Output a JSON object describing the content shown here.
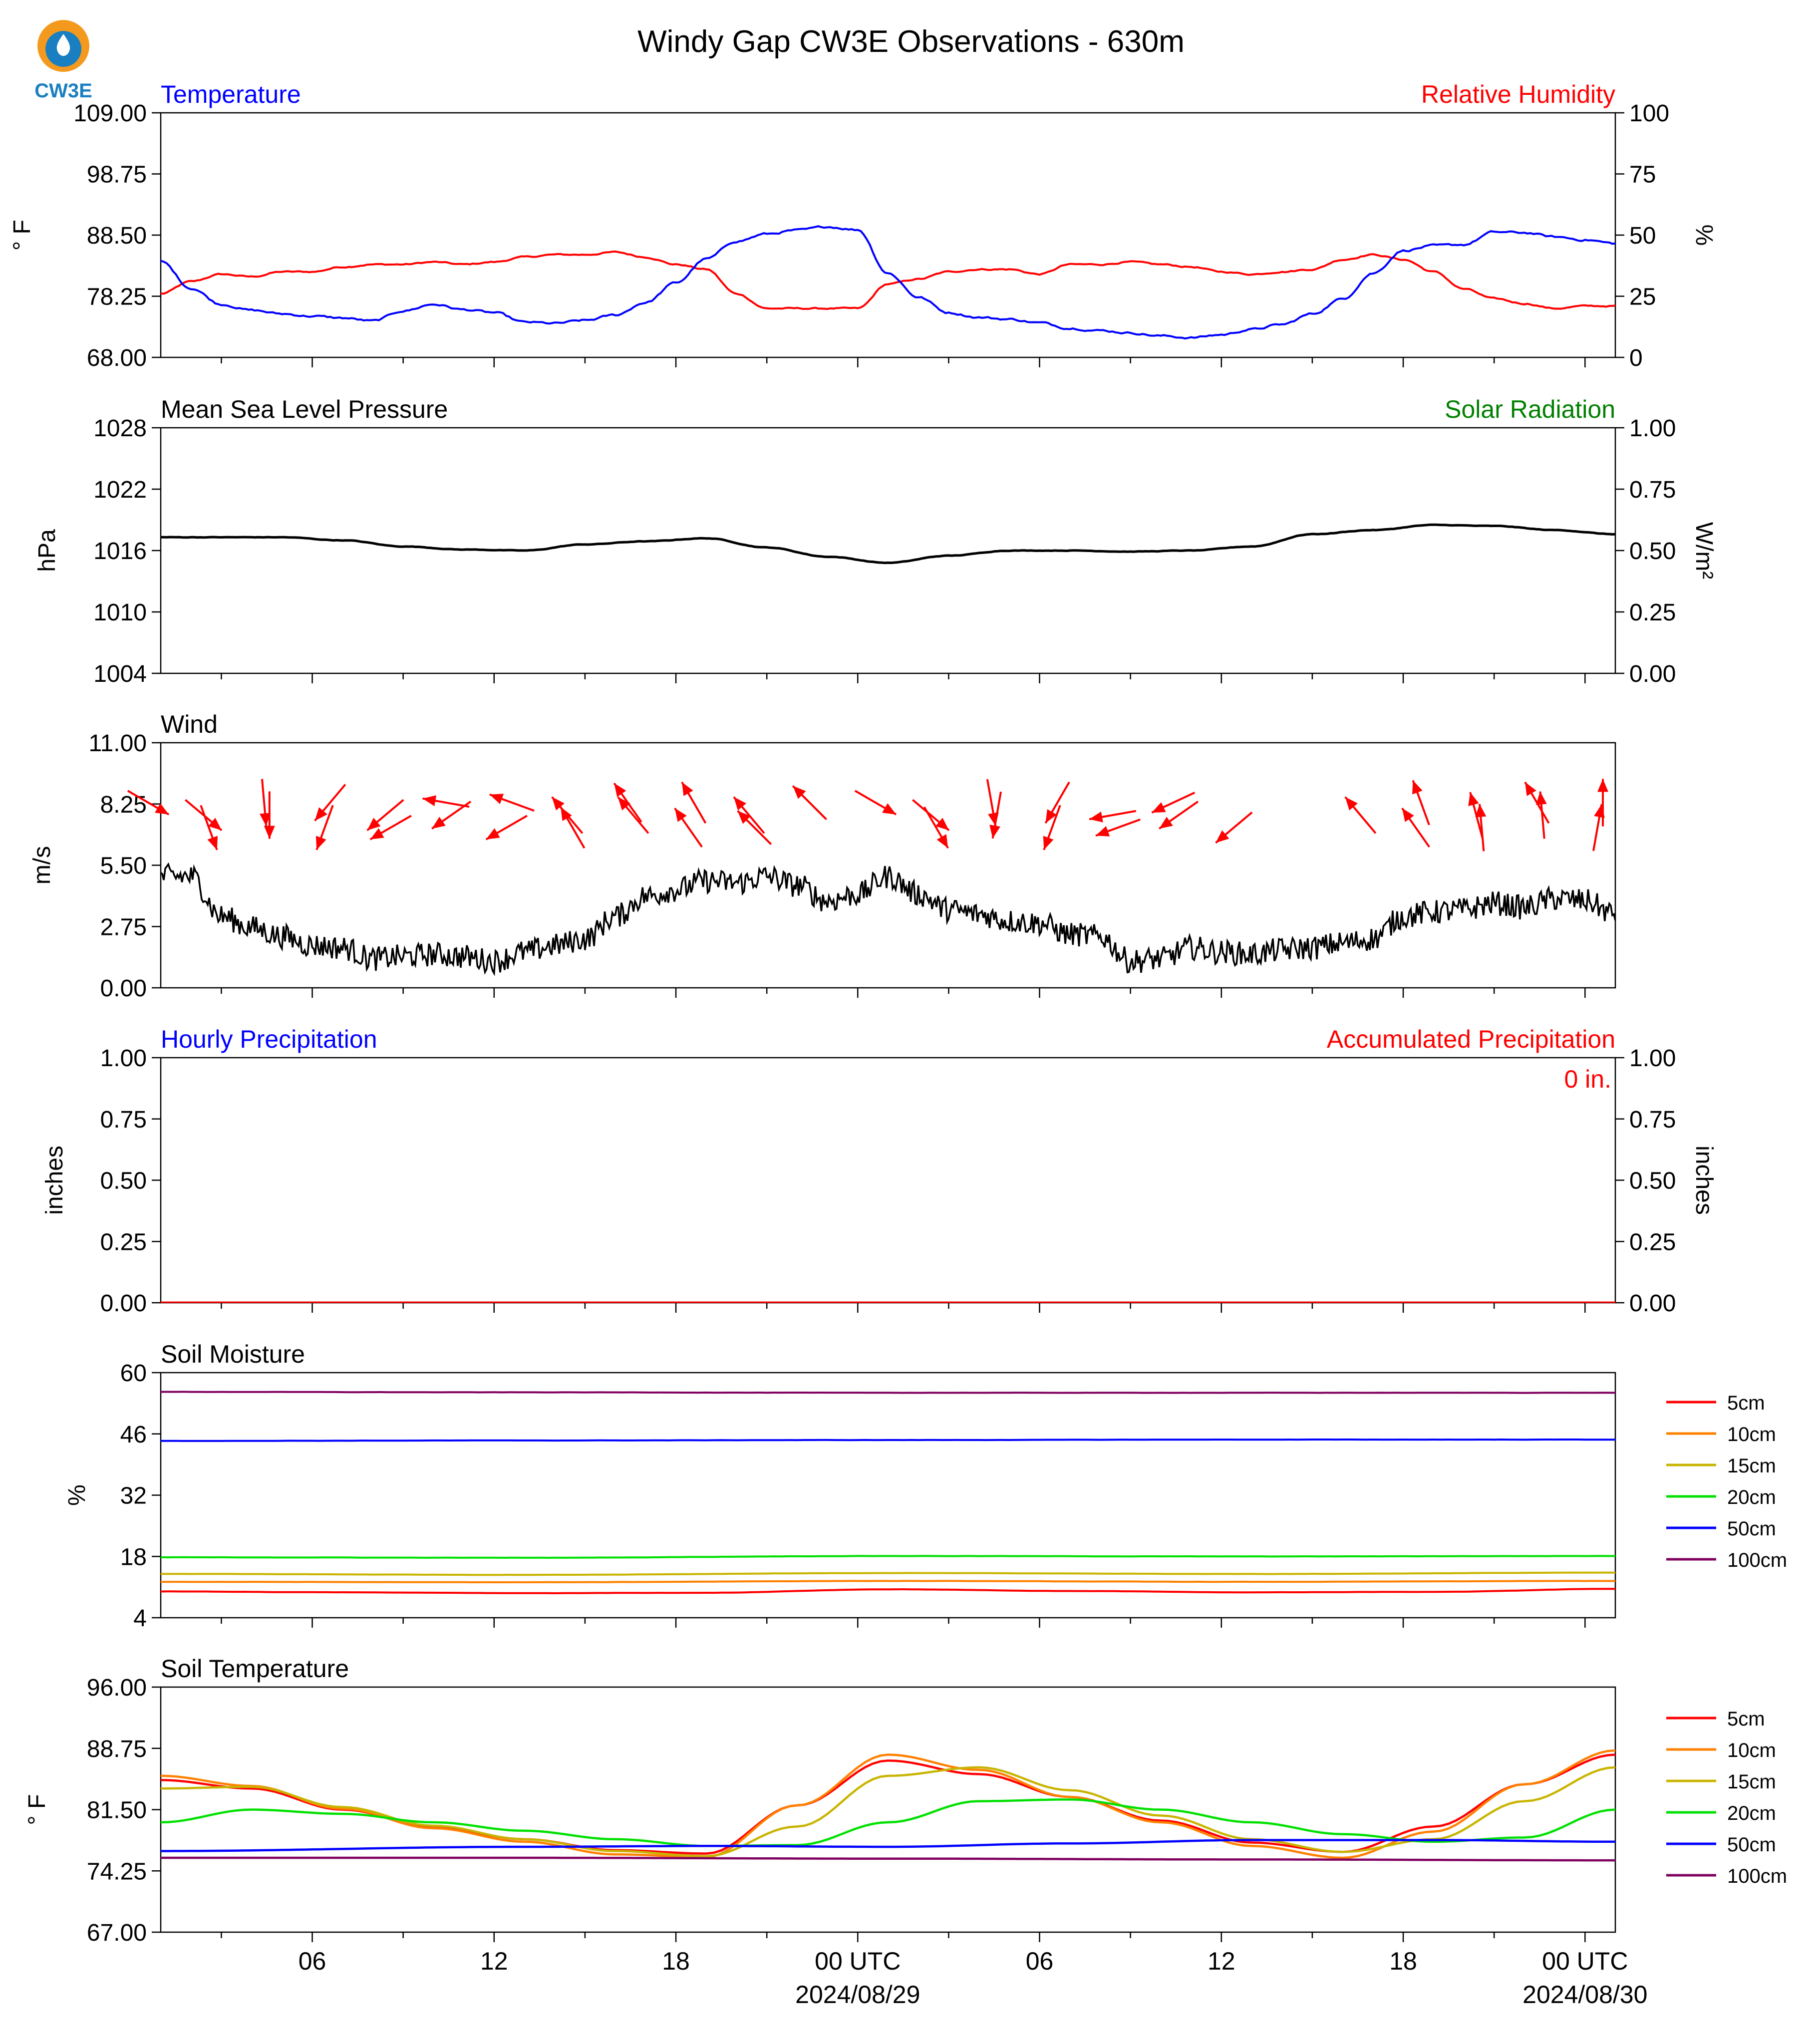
{
  "title": "Windy Gap CW3E Observations - 630m",
  "logo_text": "CW3E",
  "x_axis": {
    "tick_labels": [
      "06",
      "12",
      "18",
      "00 UTC",
      "06",
      "12",
      "18",
      "00 UTC"
    ],
    "date_labels": [
      "2024/08/29",
      "2024/08/30"
    ],
    "range_hours_from_0000Z_0828": [
      1,
      49
    ]
  },
  "legend_soil": {
    "entries": [
      "5cm",
      "10cm",
      "15cm",
      "20cm",
      "50cm",
      "100cm"
    ],
    "colors": [
      "#ff0000",
      "#ff8000",
      "#c8b400",
      "#00e000",
      "#0000ff",
      "#800060"
    ]
  },
  "colors": {
    "temp": "#0000ff",
    "rh": "#ff0000",
    "pressure": "#000000",
    "solar": "#008000",
    "wind": "#000000",
    "arrows": "#ff0000",
    "hourly": "#0000ff",
    "accum": "#ff0000"
  },
  "panels": {
    "temp": {
      "left_title": "Temperature",
      "right_title": "Relative Humidity",
      "left_ylabel": "° F",
      "right_ylabel": "%",
      "left_ticks": [
        "109.00",
        "98.75",
        "88.50",
        "78.25",
        "68.00"
      ],
      "right_ticks": [
        "100",
        "75",
        "50",
        "25",
        "0"
      ]
    },
    "pressure": {
      "left_title": "Mean Sea Level Pressure",
      "right_title": "Solar Radiation",
      "left_ylabel": "hPa",
      "right_ylabel": "W/m²",
      "left_ticks": [
        "1028",
        "1022",
        "1016",
        "1010",
        "1004"
      ],
      "right_ticks": [
        "1.00",
        "0.75",
        "0.50",
        "0.25",
        "0.00"
      ]
    },
    "wind": {
      "left_title": "Wind",
      "left_ylabel": "m/s",
      "left_ticks": [
        "11.00",
        "8.25",
        "5.50",
        "2.75",
        "0.00"
      ]
    },
    "precip": {
      "left_title": "Hourly Precipitation",
      "right_title": "Accumulated Precipitation",
      "left_ylabel": "inches",
      "right_ylabel": "inches",
      "left_ticks": [
        "1.00",
        "0.75",
        "0.50",
        "0.25",
        "0.00"
      ],
      "right_ticks": [
        "1.00",
        "0.75",
        "0.50",
        "0.25",
        "0.00"
      ],
      "accum_label": "0 in."
    },
    "soilm": {
      "left_title": "Soil Moisture",
      "left_ylabel": "%",
      "left_ticks": [
        "60",
        "46",
        "32",
        "18",
        "4"
      ]
    },
    "soilt": {
      "left_title": "Soil Temperature",
      "left_ylabel": "° F",
      "left_ticks": [
        "96.00",
        "88.75",
        "81.50",
        "74.25",
        "67.00"
      ]
    }
  },
  "chart_data": [
    {
      "type": "line",
      "title": "Temperature / Relative Humidity",
      "x_units": "hours since 2024-08-28 00 UTC",
      "y_left": {
        "label": "° F",
        "range": [
          68,
          109
        ]
      },
      "y_right": {
        "label": "%",
        "range": [
          0,
          100
        ]
      },
      "series": [
        {
          "name": "Temperature",
          "axis": "left",
          "x": [
            1,
            2,
            3,
            4,
            5,
            6,
            7,
            8,
            9,
            10,
            11,
            12,
            13,
            14,
            15,
            16,
            17,
            18,
            19,
            20,
            21,
            22,
            23,
            24,
            25,
            26,
            27,
            28,
            29,
            30,
            31,
            32,
            33,
            34,
            35,
            36,
            37,
            38,
            39,
            40,
            41,
            42,
            43,
            44,
            45,
            46,
            47,
            48,
            49
          ],
          "y": [
            84.1,
            79.6,
            76.9,
            75.9,
            75.3,
            74.9,
            74.6,
            74.1,
            75.8,
            76.9,
            76.0,
            75.5,
            73.9,
            73.7,
            74.2,
            75.1,
            77.2,
            80.5,
            84.5,
            87.5,
            88.7,
            89.3,
            89.9,
            89.4,
            82.1,
            78.1,
            75.5,
            74.7,
            74.4,
            73.8,
            72.9,
            72.5,
            72.1,
            71.6,
            71.3,
            71.8,
            72.7,
            73.5,
            75.3,
            77.8,
            82.1,
            85.9,
            86.7,
            86.9,
            89.0,
            88.9,
            88.2,
            87.7,
            87.1
          ]
        },
        {
          "name": "Relative Humidity",
          "axis": "right",
          "x": [
            1,
            2,
            3,
            4,
            5,
            6,
            7,
            8,
            9,
            10,
            11,
            12,
            13,
            14,
            15,
            16,
            17,
            18,
            19,
            20,
            21,
            22,
            23,
            24,
            25,
            26,
            27,
            28,
            29,
            30,
            31,
            32,
            33,
            34,
            35,
            36,
            37,
            38,
            39,
            40,
            41,
            42,
            43,
            44,
            45,
            46,
            47,
            48,
            49
          ],
          "y": [
            26,
            31,
            34,
            33,
            35,
            35,
            37,
            38,
            38,
            39,
            38,
            39,
            41,
            42,
            42,
            43,
            41,
            38,
            36,
            26,
            20,
            20,
            20,
            20,
            30,
            32,
            35,
            36,
            36,
            34,
            38,
            38,
            39,
            38,
            37,
            35,
            34,
            35,
            36,
            40,
            42,
            40,
            35,
            28,
            24,
            22,
            20,
            21,
            21
          ]
        }
      ]
    },
    {
      "type": "line",
      "title": "Mean Sea Level Pressure / Solar Radiation",
      "x_units": "hours since 2024-08-28 00 UTC",
      "y_left": {
        "label": "hPa",
        "range": [
          1004,
          1028
        ]
      },
      "y_right": {
        "label": "W/m²",
        "range": [
          0,
          1
        ]
      },
      "series": [
        {
          "name": "Mean Sea Level Pressure",
          "axis": "left",
          "x": [
            1,
            3,
            5,
            7,
            9,
            11,
            13,
            15,
            17,
            19,
            21,
            23,
            25,
            27,
            29,
            31,
            33,
            35,
            37,
            39,
            41,
            43,
            45,
            47,
            49
          ],
          "y": [
            1017.3,
            1017.3,
            1017.3,
            1017.0,
            1016.4,
            1016.1,
            1016.0,
            1016.6,
            1016.9,
            1017.2,
            1016.3,
            1015.4,
            1014.8,
            1015.5,
            1016.0,
            1016.0,
            1015.9,
            1016.0,
            1016.4,
            1017.6,
            1018.0,
            1018.5,
            1018.4,
            1018.0,
            1017.6
          ]
        }
      ]
    },
    {
      "type": "line",
      "title": "Wind",
      "x_units": "hours since 2024-08-28 00 UTC",
      "y": {
        "label": "m/s",
        "range": [
          0,
          11
        ]
      },
      "series": [
        {
          "name": "Wind speed",
          "x": [
            1,
            2,
            3,
            4,
            5,
            6,
            7,
            8,
            9,
            10,
            11,
            12,
            13,
            14,
            15,
            16,
            17,
            18,
            19,
            20,
            21,
            22,
            23,
            24,
            25,
            26,
            27,
            28,
            29,
            30,
            31,
            32,
            33,
            34,
            35,
            36,
            37,
            38,
            39,
            40,
            41,
            42,
            43,
            44,
            45,
            46,
            47,
            48,
            49
          ],
          "y": [
            5.0,
            5.0,
            3.2,
            2.7,
            2.3,
            1.9,
            1.8,
            1.3,
            1.4,
            1.5,
            1.4,
            1.2,
            1.6,
            1.9,
            2.2,
            3.2,
            4.1,
            4.4,
            4.8,
            4.7,
            5.0,
            4.6,
            3.9,
            4.2,
            5.0,
            4.2,
            3.5,
            3.3,
            3.0,
            2.9,
            2.4,
            2.3,
            1.2,
            1.3,
            1.8,
            1.6,
            1.5,
            1.7,
            1.8,
            2.0,
            2.2,
            3.2,
            3.4,
            3.5,
            3.8,
            3.6,
            4.0,
            3.9,
            3.3
          ]
        }
      ],
      "direction_arrows": {
        "hours": [
          1,
          2,
          3,
          4,
          5,
          6,
          7,
          8,
          9,
          10,
          11,
          12,
          13,
          14,
          15,
          16,
          17,
          18,
          19,
          20,
          21,
          22,
          23,
          24,
          25,
          26,
          27,
          28,
          29,
          30,
          31,
          32,
          33,
          34,
          35,
          36,
          37,
          38,
          39,
          40,
          41,
          42,
          43,
          44,
          45,
          46,
          47,
          48,
          49
        ],
        "toward_deg": [
          120,
          130,
          160,
          175,
          180,
          200,
          220,
          230,
          240,
          280,
          235,
          240,
          290,
          320,
          330,
          325,
          320,
          325,
          330,
          320,
          315,
          315,
          null,
          null,
          120,
          130,
          150,
          170,
          190,
          200,
          210,
          260,
          250,
          245,
          235,
          230,
          null,
          null,
          null,
          null,
          320,
          325,
          340,
          345,
          355,
          330,
          355,
          10,
          0
        ]
      }
    },
    {
      "type": "line",
      "title": "Hourly Precipitation / Accumulated Precipitation",
      "x_units": "hours since 2024-08-28 00 UTC",
      "y_left": {
        "label": "inches",
        "range": [
          0,
          1
        ]
      },
      "y_right": {
        "label": "inches",
        "range": [
          0,
          1
        ]
      },
      "series": [
        {
          "name": "Hourly Precipitation",
          "axis": "left",
          "x": [
            1,
            49
          ],
          "y": [
            0,
            0
          ]
        },
        {
          "name": "Accumulated Precipitation",
          "axis": "right",
          "x": [
            1,
            49
          ],
          "y": [
            0,
            0
          ]
        }
      ]
    },
    {
      "type": "line",
      "title": "Soil Moisture",
      "x_units": "hours since 2024-08-28 00 UTC",
      "y": {
        "label": "%",
        "range": [
          4,
          60
        ]
      },
      "series": [
        {
          "name": "5cm",
          "x": [
            1,
            7,
            13,
            19,
            25,
            31,
            37,
            43,
            49
          ],
          "y": [
            10.0,
            9.8,
            9.6,
            9.7,
            10.5,
            10.1,
            9.8,
            9.9,
            10.6
          ]
        },
        {
          "name": "10cm",
          "x": [
            1,
            13,
            25,
            37,
            49
          ],
          "y": [
            12.2,
            12.1,
            12.4,
            12.2,
            12.4
          ]
        },
        {
          "name": "15cm",
          "x": [
            1,
            13,
            25,
            37,
            49
          ],
          "y": [
            14.0,
            13.8,
            14.2,
            14.0,
            14.3
          ]
        },
        {
          "name": "20cm",
          "x": [
            1,
            13,
            25,
            37,
            49
          ],
          "y": [
            17.8,
            17.7,
            18.1,
            18.0,
            18.1
          ]
        },
        {
          "name": "50cm",
          "x": [
            1,
            13,
            25,
            37,
            49
          ],
          "y": [
            44.4,
            44.5,
            44.6,
            44.7,
            44.7
          ]
        },
        {
          "name": "100cm",
          "x": [
            1,
            13,
            25,
            37,
            49
          ],
          "y": [
            55.6,
            55.5,
            55.4,
            55.4,
            55.4
          ]
        }
      ]
    },
    {
      "type": "line",
      "title": "Soil Temperature",
      "x_units": "hours since 2024-08-28 00 UTC",
      "y": {
        "label": "° F",
        "range": [
          67,
          96
        ]
      },
      "series": [
        {
          "name": "5cm",
          "x": [
            1,
            4,
            7,
            10,
            13,
            16,
            19,
            22,
            25,
            28,
            31,
            34,
            37,
            40,
            43,
            46,
            49
          ],
          "y": [
            85.0,
            84.0,
            81.5,
            79.5,
            78.0,
            76.7,
            76.3,
            82.0,
            87.3,
            85.7,
            83.0,
            80.2,
            77.6,
            76.5,
            79.5,
            84.5,
            88.0
          ]
        },
        {
          "name": "10cm",
          "x": [
            1,
            4,
            7,
            10,
            13,
            16,
            19,
            22,
            25,
            28,
            31,
            34,
            37,
            40,
            43,
            46,
            49
          ],
          "y": [
            85.5,
            84.3,
            81.6,
            79.3,
            77.7,
            76.2,
            75.9,
            82.0,
            88.0,
            86.2,
            83.0,
            80.0,
            77.2,
            75.8,
            78.9,
            84.5,
            88.5
          ]
        },
        {
          "name": "15cm",
          "x": [
            1,
            4,
            7,
            10,
            13,
            16,
            19,
            22,
            25,
            28,
            31,
            34,
            37,
            40,
            43,
            46,
            49
          ],
          "y": [
            84.0,
            84.2,
            81.8,
            79.6,
            78.0,
            76.6,
            76.0,
            79.5,
            85.5,
            86.5,
            83.8,
            80.8,
            78.0,
            76.5,
            78.0,
            82.5,
            86.5
          ]
        },
        {
          "name": "20cm",
          "x": [
            1,
            4,
            7,
            10,
            13,
            16,
            19,
            22,
            25,
            28,
            31,
            34,
            37,
            40,
            43,
            46,
            49
          ],
          "y": [
            80.0,
            81.5,
            81.0,
            80.0,
            79.0,
            78.0,
            77.2,
            77.3,
            80.0,
            82.5,
            82.7,
            81.5,
            80.0,
            78.6,
            77.7,
            78.2,
            81.5
          ]
        },
        {
          "name": "50cm",
          "x": [
            1,
            13,
            19,
            25,
            31,
            37,
            43,
            49
          ],
          "y": [
            76.6,
            77.1,
            77.2,
            77.1,
            77.5,
            77.9,
            77.9,
            77.7
          ]
        },
        {
          "name": "100cm",
          "x": [
            1,
            13,
            25,
            37,
            49
          ],
          "y": [
            75.8,
            75.8,
            75.7,
            75.6,
            75.5
          ]
        }
      ]
    }
  ]
}
